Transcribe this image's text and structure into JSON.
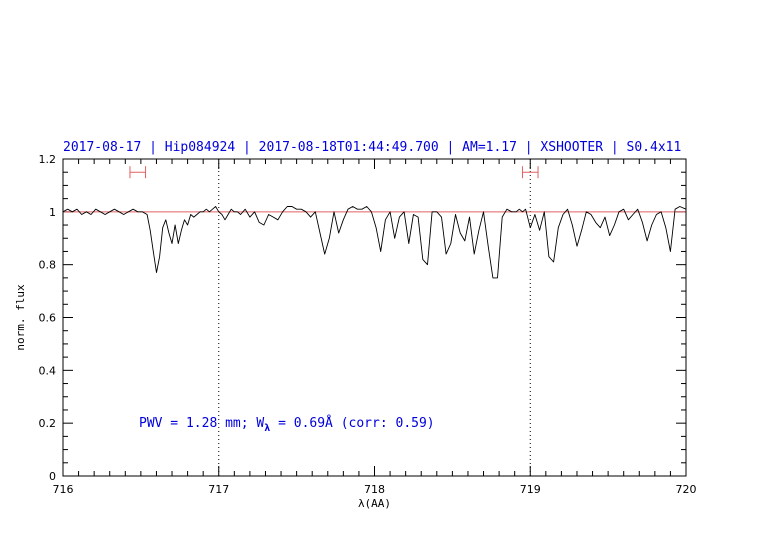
{
  "chart_data": {
    "type": "line",
    "title": "2017-08-17 | Hip084924 | 2017-08-18T01:44:49.700 | AM=1.17 | XSHOOTER | S0.4x11",
    "xlabel": "λ(AA)",
    "ylabel": "norm. flux",
    "xlim": [
      716,
      720
    ],
    "ylim": [
      0,
      1.2
    ],
    "x_ticks": [
      "716",
      "717",
      "718",
      "719",
      "720"
    ],
    "y_ticks": [
      "0",
      "0.2",
      "0.4",
      "0.6",
      "0.8",
      "1",
      "1.2"
    ],
    "grid": false,
    "reference_line": {
      "y": 1.0,
      "color": "#e06060"
    },
    "vertical_markers": [
      717.0,
      719.0
    ],
    "intervals": [
      {
        "center": 716.48,
        "half_width": 0.05,
        "y": 1.15,
        "color": "#e06060"
      },
      {
        "center": 719.0,
        "half_width": 0.05,
        "y": 1.15,
        "color": "#e06060"
      }
    ],
    "annotation": {
      "prefix": "PWV = 1.28 mm; W",
      "subscript": "λ",
      "suffix": " = 0.69Å (corr: 0.59)"
    },
    "series": [
      {
        "color": "#000000",
        "x": [
          716.0,
          716.03,
          716.06,
          716.09,
          716.12,
          716.15,
          716.18,
          716.21,
          716.24,
          716.27,
          716.3,
          716.33,
          716.36,
          716.39,
          716.42,
          716.45,
          716.48,
          716.51,
          716.54,
          716.56,
          716.58,
          716.6,
          716.62,
          716.64,
          716.66,
          716.68,
          716.7,
          716.72,
          716.74,
          716.76,
          716.78,
          716.8,
          716.82,
          716.84,
          716.86,
          716.88,
          716.9,
          716.92,
          716.94,
          716.96,
          716.98,
          717.0,
          717.02,
          717.04,
          717.06,
          717.08,
          717.1,
          717.12,
          717.14,
          717.17,
          717.2,
          717.23,
          717.26,
          717.29,
          717.32,
          717.35,
          717.38,
          717.41,
          717.44,
          717.47,
          717.5,
          717.53,
          717.56,
          717.59,
          717.62,
          717.65,
          717.68,
          717.71,
          717.74,
          717.77,
          717.8,
          717.83,
          717.86,
          717.89,
          717.92,
          717.95,
          717.98,
          718.01,
          718.04,
          718.07,
          718.1,
          718.13,
          718.16,
          718.19,
          718.22,
          718.25,
          718.28,
          718.31,
          718.34,
          718.37,
          718.4,
          718.43,
          718.46,
          718.49,
          718.52,
          718.55,
          718.58,
          718.61,
          718.64,
          718.67,
          718.7,
          718.73,
          718.76,
          718.79,
          718.82,
          718.85,
          718.88,
          718.91,
          718.93,
          718.95,
          718.97,
          719.0,
          719.03,
          719.06,
          719.09,
          719.12,
          719.15,
          719.18,
          719.21,
          719.24,
          719.27,
          719.3,
          719.33,
          719.36,
          719.39,
          719.42,
          719.45,
          719.48,
          719.51,
          719.54,
          719.57,
          719.6,
          719.63,
          719.66,
          719.69,
          719.72,
          719.75,
          719.78,
          719.81,
          719.84,
          719.87,
          719.9,
          719.93,
          719.96,
          720.0
        ],
        "y": [
          1.0,
          1.01,
          1.0,
          1.01,
          0.99,
          1.0,
          0.99,
          1.01,
          1.0,
          0.99,
          1.0,
          1.01,
          1.0,
          0.99,
          1.0,
          1.01,
          1.0,
          1.0,
          0.99,
          0.93,
          0.85,
          0.77,
          0.83,
          0.94,
          0.97,
          0.92,
          0.88,
          0.95,
          0.88,
          0.93,
          0.97,
          0.95,
          0.99,
          0.98,
          0.99,
          1.0,
          1.0,
          1.01,
          1.0,
          1.01,
          1.02,
          1.0,
          0.99,
          0.97,
          0.99,
          1.01,
          1.0,
          1.0,
          0.99,
          1.01,
          0.98,
          1.0,
          0.96,
          0.95,
          0.99,
          0.98,
          0.97,
          1.0,
          1.02,
          1.02,
          1.01,
          1.01,
          1.0,
          0.98,
          1.0,
          0.92,
          0.84,
          0.9,
          1.0,
          0.92,
          0.97,
          1.01,
          1.02,
          1.01,
          1.01,
          1.02,
          1.0,
          0.94,
          0.85,
          0.97,
          1.0,
          0.9,
          0.98,
          1.0,
          0.88,
          0.99,
          0.98,
          0.82,
          0.8,
          1.0,
          1.0,
          0.98,
          0.84,
          0.88,
          0.99,
          0.92,
          0.89,
          0.98,
          0.84,
          0.93,
          1.0,
          0.87,
          0.75,
          0.75,
          0.98,
          1.01,
          1.0,
          1.0,
          1.01,
          1.0,
          1.01,
          0.94,
          0.99,
          0.93,
          1.0,
          0.83,
          0.81,
          0.94,
          0.99,
          1.01,
          0.95,
          0.87,
          0.93,
          1.0,
          0.99,
          0.96,
          0.94,
          0.98,
          0.91,
          0.95,
          1.0,
          1.01,
          0.97,
          0.99,
          1.01,
          0.96,
          0.89,
          0.95,
          0.99,
          1.0,
          0.94,
          0.85,
          1.01,
          1.02,
          1.01
        ]
      }
    ]
  }
}
